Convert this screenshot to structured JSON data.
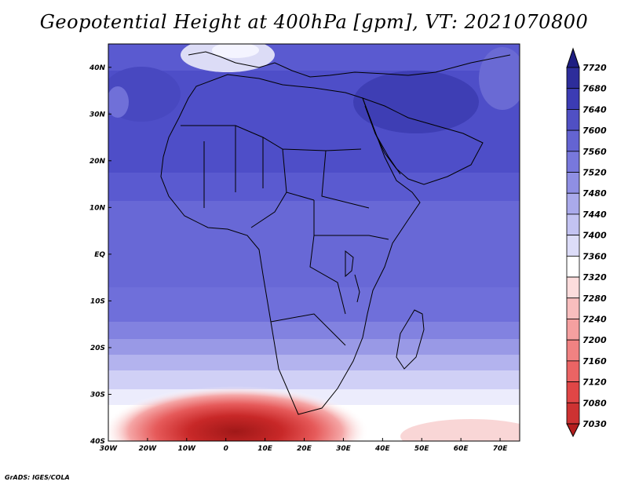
{
  "title": "Geopotential Height at 400hPa [gpm], VT: 2021070800",
  "credit": "GrADS: IGES/COLA",
  "map": {
    "lon_range": [
      -30,
      75
    ],
    "lat_range": [
      -40,
      45
    ],
    "lon_ticks": [
      {
        "value": -30,
        "label": "30W"
      },
      {
        "value": -20,
        "label": "20W"
      },
      {
        "value": -10,
        "label": "10W"
      },
      {
        "value": 0,
        "label": "0"
      },
      {
        "value": 10,
        "label": "10E"
      },
      {
        "value": 20,
        "label": "20E"
      },
      {
        "value": 30,
        "label": "30E"
      },
      {
        "value": 40,
        "label": "40E"
      },
      {
        "value": 50,
        "label": "50E"
      },
      {
        "value": 60,
        "label": "60E"
      },
      {
        "value": 70,
        "label": "70E"
      }
    ],
    "lat_ticks": [
      {
        "value": 40,
        "label": "40N"
      },
      {
        "value": 30,
        "label": "30N"
      },
      {
        "value": 20,
        "label": "20N"
      },
      {
        "value": 10,
        "label": "10N"
      },
      {
        "value": 0,
        "label": "EQ"
      },
      {
        "value": -10,
        "label": "10S"
      },
      {
        "value": -20,
        "label": "20S"
      },
      {
        "value": -30,
        "label": "30S"
      },
      {
        "value": -40,
        "label": "40S"
      }
    ]
  },
  "colorbar": {
    "levels": [
      "7030",
      "7080",
      "7120",
      "7160",
      "7200",
      "7240",
      "7280",
      "7320",
      "7360",
      "7400",
      "7440",
      "7480",
      "7520",
      "7560",
      "7600",
      "7640",
      "7680",
      "7720"
    ],
    "colors": [
      "#b41e1e",
      "#cd3232",
      "#e04646",
      "#eb6464",
      "#f08282",
      "#f5a0a0",
      "#f8bebe",
      "#fcdcdc",
      "#ffffff",
      "#dcdcf8",
      "#c3c3f2",
      "#aaaaeb",
      "#8f8fe3",
      "#7878dc",
      "#6464d2",
      "#5050c4",
      "#3c3cb4",
      "#2d2d9b",
      "#1e1e82"
    ]
  }
}
